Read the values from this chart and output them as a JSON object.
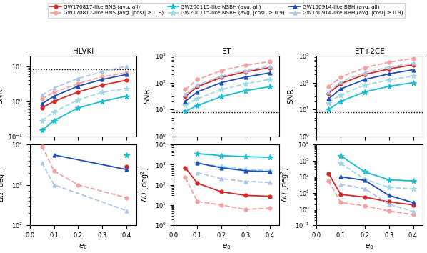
{
  "e0": [
    0.05,
    0.1,
    0.2,
    0.3,
    0.4
  ],
  "detectors": [
    "HLVKI",
    "ET",
    "ET+2CE"
  ],
  "legend_labels": [
    "GW170817-like BNS (avg. all)",
    "GW170817-like BNS (avg. |cosι| ≥ 0.9)",
    "GW200115-like NSBH (avg. all)",
    "GW200115-like NSBH (avg. |cosι| ≥ 0.9)",
    "GW150914-like BBH (avg. all)",
    "GW150914-like BBH (avg. |cosι| ≥ 0.9)"
  ],
  "colors": {
    "BNS": "#d62728",
    "BNS_light": "#f4a0a0",
    "NSBH": "#17becf",
    "NSBH_light": "#9edae5",
    "BBH": "#1f4eb5",
    "BBH_light": "#aec7e8"
  },
  "snr_dotted_line": 8.0,
  "SNR": {
    "HLVKI": {
      "BNS_avg": [
        0.65,
        1.0,
        1.85,
        2.9,
        4.0
      ],
      "BNS_face": [
        1.2,
        1.8,
        3.2,
        5.0,
        6.5
      ],
      "NSBH_avg": [
        0.15,
        0.28,
        0.65,
        1.0,
        1.4
      ],
      "NSBH_face": [
        0.28,
        0.5,
        1.1,
        1.8,
        2.3
      ],
      "BBH_avg": [
        0.85,
        1.4,
        2.7,
        4.2,
        5.8
      ],
      "BBH_face": [
        1.5,
        2.4,
        4.5,
        7.0,
        10.0
      ]
    },
    "ET": {
      "BNS_avg": [
        30.0,
        70.0,
        155.0,
        250.0,
        360.0
      ],
      "BNS_face": [
        55.0,
        130.0,
        280.0,
        440.0,
        600.0
      ],
      "NSBH_avg": [
        8.5,
        14.0,
        30.0,
        50.0,
        70.0
      ],
      "NSBH_face": [
        15.0,
        25.0,
        55.0,
        90.0,
        130.0
      ],
      "BBH_avg": [
        20.0,
        45.0,
        100.0,
        160.0,
        230.0
      ],
      "BBH_face": [
        36.0,
        80.0,
        175.0,
        280.0,
        400.0
      ]
    },
    "ET+2CE": {
      "BNS_avg": [
        40.0,
        90.0,
        200.0,
        320.0,
        460.0
      ],
      "BNS_face": [
        70.0,
        160.0,
        360.0,
        570.0,
        800.0
      ],
      "NSBH_avg": [
        10.0,
        20.0,
        45.0,
        72.0,
        100.0
      ],
      "NSBH_face": [
        18.0,
        35.0,
        80.0,
        125.0,
        175.0
      ],
      "BBH_avg": [
        25.0,
        58.0,
        130.0,
        210.0,
        300.0
      ],
      "BBH_face": [
        45.0,
        105.0,
        235.0,
        375.0,
        530.0
      ]
    }
  },
  "dOmega": {
    "HLVKI": {
      "BNS_avg": [
        null,
        null,
        null,
        null,
        2800.0
      ],
      "BNS_face": [
        9000.0,
        2200.0,
        1000.0,
        null,
        480.0
      ],
      "NSBH_avg": [
        null,
        null,
        null,
        null,
        5500.0
      ],
      "NSBH_face": [
        null,
        null,
        null,
        null,
        null
      ],
      "BBH_avg": [
        null,
        5500.0,
        null,
        null,
        2400.0
      ],
      "BBH_face": [
        3500.0,
        1000.0,
        null,
        null,
        230.0
      ]
    },
    "ET": {
      "BNS_avg": [
        700.0,
        120.0,
        45.0,
        30.0,
        27.0
      ],
      "BNS_face": [
        230.0,
        15.0,
        10.0,
        6.0,
        7.0
      ],
      "NSBH_avg": [
        null,
        3500.0,
        2800.0,
        2500.0,
        2300.0
      ],
      "NSBH_face": [
        null,
        1200.0,
        800.0,
        600.0,
        500.0
      ],
      "BBH_avg": [
        null,
        1200.0,
        700.0,
        500.0,
        450.0
      ],
      "BBH_face": [
        null,
        400.0,
        200.0,
        150.0,
        130.0
      ]
    },
    "ET+2CE": {
      "BNS_avg": [
        160.0,
        8.0,
        5.5,
        2.8,
        1.8
      ],
      "BNS_face": [
        55.0,
        2.5,
        1.6,
        0.75,
        0.45
      ],
      "NSBH_avg": [
        null,
        2000.0,
        200.0,
        65.0,
        55.0
      ],
      "NSBH_face": [
        null,
        700.0,
        70.0,
        22.0,
        18.0
      ],
      "BBH_avg": [
        null,
        100.0,
        60.0,
        7.0,
        2.5
      ],
      "BBH_face": [
        null,
        35.0,
        18.0,
        2.0,
        0.7
      ]
    }
  }
}
